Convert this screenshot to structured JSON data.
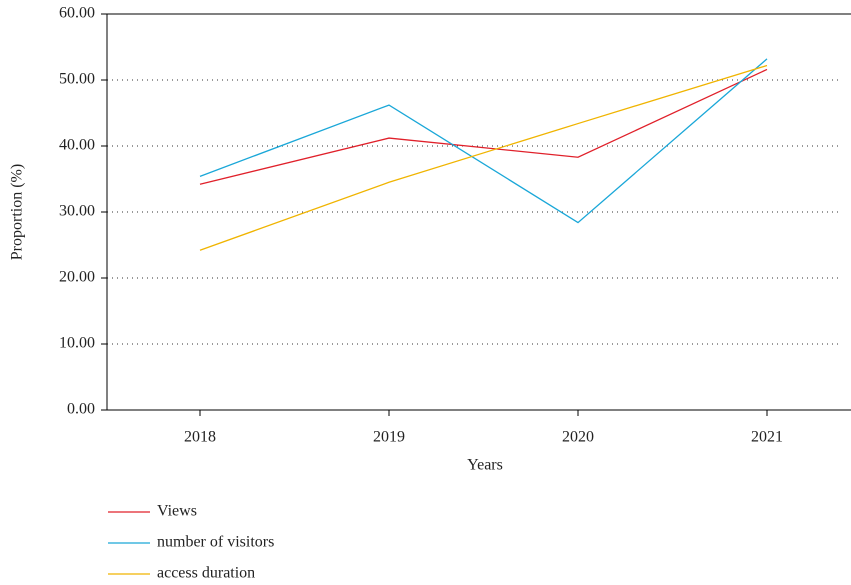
{
  "chart_data": {
    "type": "line",
    "x_label": "Years",
    "y_label": "Proportion (%)",
    "categories": [
      "2018",
      "2019",
      "2020",
      "2021"
    ],
    "series": [
      {
        "name": "Views",
        "color": "#e0202a",
        "values": [
          34.2,
          41.2,
          38.3,
          51.6
        ]
      },
      {
        "name": "number of visitors",
        "color": "#1aa7d8",
        "values": [
          35.4,
          46.2,
          28.4,
          53.2
        ]
      },
      {
        "name": "access duration",
        "color": "#f0b400",
        "values": [
          24.2,
          34.5,
          43.4,
          52.2
        ]
      }
    ],
    "ylim": [
      0,
      60
    ],
    "yticks": [
      {
        "value": 0,
        "label": "0.00"
      },
      {
        "value": 10,
        "label": "10.00"
      },
      {
        "value": 20,
        "label": "20.00"
      },
      {
        "value": 30,
        "label": "30.00"
      },
      {
        "value": 40,
        "label": "40.00"
      },
      {
        "value": 50,
        "label": "50.00"
      },
      {
        "value": 60,
        "label": "60.00"
      }
    ],
    "grid": true
  }
}
